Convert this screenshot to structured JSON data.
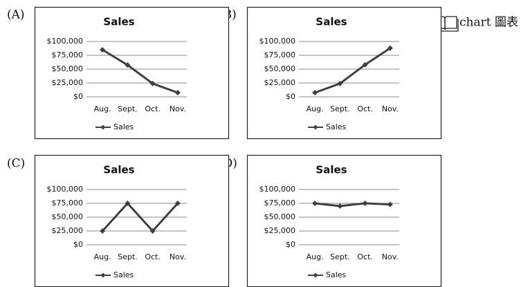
{
  "options": [
    "(A)",
    "(B)",
    "(C)",
    "(D)"
  ],
  "note": "chart 圖表",
  "chart_data": [
    {
      "type": "line",
      "title": "Sales",
      "categories": [
        "Aug.",
        "Sept.",
        "Oct.",
        "Nov."
      ],
      "series": [
        {
          "name": "Sales",
          "color": "#404040",
          "values": [
            85000,
            57500,
            24000,
            7500
          ]
        }
      ],
      "ylim": [
        0,
        100000
      ],
      "yticks": [
        {
          "value": 0,
          "label": "$0"
        },
        {
          "value": 25000,
          "label": "$25,000"
        },
        {
          "value": 50000,
          "label": "$50,000"
        },
        {
          "value": 75000,
          "label": "$75,000"
        },
        {
          "value": 100000,
          "label": "$100,000"
        }
      ],
      "grid": true,
      "legend": "bottom"
    },
    {
      "type": "line",
      "title": "Sales",
      "categories": [
        "Aug.",
        "Sept.",
        "Oct.",
        "Nov."
      ],
      "series": [
        {
          "name": "Sales",
          "color": "#404040",
          "values": [
            7500,
            24000,
            58000,
            88000
          ]
        }
      ],
      "ylim": [
        0,
        100000
      ],
      "yticks": [
        {
          "value": 0,
          "label": "$0"
        },
        {
          "value": 25000,
          "label": "$25,000"
        },
        {
          "value": 50000,
          "label": "$50,000"
        },
        {
          "value": 75000,
          "label": "$75,000"
        },
        {
          "value": 100000,
          "label": "$100,000"
        }
      ],
      "grid": true,
      "legend": "bottom"
    },
    {
      "type": "line",
      "title": "Sales",
      "categories": [
        "Aug.",
        "Sept.",
        "Oct.",
        "Nov."
      ],
      "series": [
        {
          "name": "Sales",
          "color": "#404040",
          "values": [
            25000,
            75000,
            25000,
            75000
          ]
        }
      ],
      "ylim": [
        0,
        100000
      ],
      "yticks": [
        {
          "value": 0,
          "label": "$0"
        },
        {
          "value": 25000,
          "label": "$25,000"
        },
        {
          "value": 50000,
          "label": "$50,000"
        },
        {
          "value": 75000,
          "label": "$75,000"
        },
        {
          "value": 100000,
          "label": "$100,000"
        }
      ],
      "grid": true,
      "legend": "bottom"
    },
    {
      "type": "line",
      "title": "Sales",
      "categories": [
        "Aug.",
        "Sept.",
        "Oct.",
        "Nov."
      ],
      "series": [
        {
          "name": "Sales",
          "color": "#404040",
          "values": [
            75000,
            70000,
            75000,
            73000
          ]
        }
      ],
      "ylim": [
        0,
        100000
      ],
      "yticks": [
        {
          "value": 0,
          "label": "$0"
        },
        {
          "value": 25000,
          "label": "$25,000"
        },
        {
          "value": 50000,
          "label": "$50,000"
        },
        {
          "value": 75000,
          "label": "$75,000"
        },
        {
          "value": 100000,
          "label": "$100,000"
        }
      ],
      "grid": true,
      "legend": "bottom"
    }
  ]
}
